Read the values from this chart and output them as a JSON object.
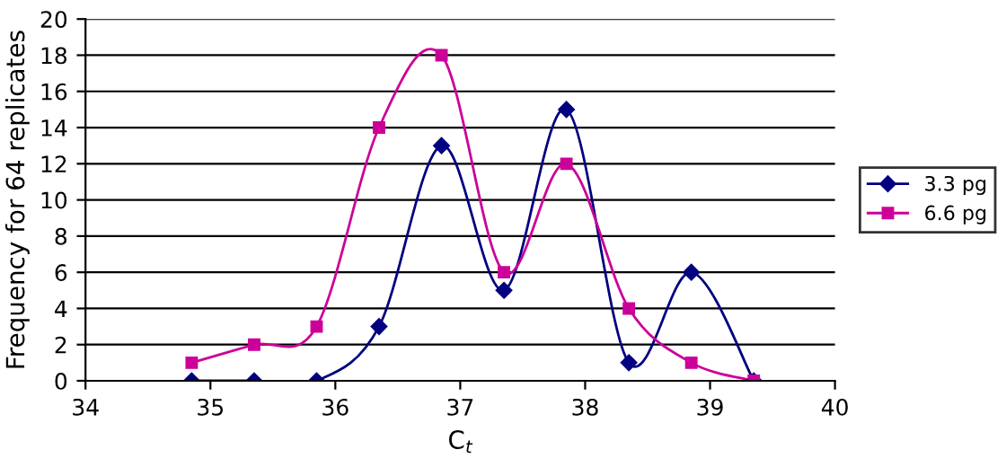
{
  "chart_data": {
    "type": "line",
    "xlabel": "C$_{t}$",
    "ylabel": "Frequency for 64 replicates",
    "x": [
      34.85,
      35.35,
      35.85,
      36.35,
      36.85,
      37.35,
      37.85,
      38.35,
      38.85,
      39.35
    ],
    "series": [
      {
        "name": "3.3 pg",
        "color": "#000080",
        "marker": "diamond",
        "values": [
          0,
          0,
          0,
          3,
          13,
          5,
          15,
          1,
          6,
          0
        ]
      },
      {
        "name": "6.6 pg",
        "color": "#cc0099",
        "marker": "square",
        "values": [
          1,
          2,
          3,
          14,
          18,
          6,
          12,
          4,
          1,
          0
        ]
      }
    ],
    "xlim": [
      34,
      40
    ],
    "xticks": [
      34,
      35,
      36,
      37,
      38,
      39,
      40
    ],
    "ylim": [
      0,
      20
    ],
    "yticks": [
      0,
      2,
      4,
      6,
      8,
      10,
      12,
      14,
      16,
      18,
      20
    ],
    "grid": "y",
    "legend": "right",
    "line_style": "solid"
  }
}
